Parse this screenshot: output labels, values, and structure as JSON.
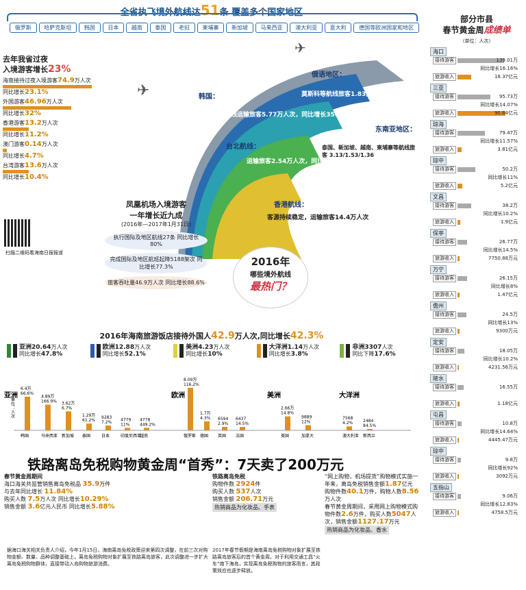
{
  "header": {
    "title_a": "全省执飞境外航线达",
    "count": "51",
    "title_b": "条  覆盖多个国家地区",
    "countries": [
      "俄罗斯",
      "哈萨克斯坦",
      "韩国",
      "日本",
      "越南",
      "泰国",
      "老挝",
      "柬埔寨",
      "新加坡",
      "马来西亚",
      "澳大利亚",
      "意大利",
      "德国等欧洲国家和地区"
    ]
  },
  "left": {
    "title": "去年我省过夜",
    "title2": "入境游客增长",
    "pct": "23%",
    "rows": [
      {
        "a": "海南接待过夜入境游客",
        "v": "74.9",
        "u": "万人次",
        "g": "同比增长",
        "gv": "23.1%",
        "w": 130
      },
      {
        "a": "外国游客",
        "v": "46.96",
        "u": "万人次",
        "g": "同比增长",
        "gv": "32%",
        "w": 100
      },
      {
        "a": "香港游客",
        "v": "13.2",
        "u": "万人次",
        "g": "同比增长",
        "gv": "11.2%",
        "w": 38
      },
      {
        "a": "澳门游客",
        "v": "0.14",
        "u": "万人次",
        "g": "同比增长",
        "gv": "4.7%",
        "w": 6
      },
      {
        "a": "台湾游客",
        "v": "13.6",
        "u": "万人次",
        "g": "同比增长",
        "gv": "10.4%",
        "w": 38
      }
    ]
  },
  "arcs": {
    "sea": {
      "t": "东南亚地区：",
      "d": "泰国、新加坡、越南、柬埔寨等航线旅客",
      "v1": "3.13",
      "v2": "1.53",
      "v3": "1.36"
    },
    "rus": {
      "t": "俄语地区：",
      "d": "莫斯科等航线旅客",
      "v": "1.83",
      "u": "万人次，同比增长",
      "g": "147.2%"
    },
    "kor": {
      "t": "韩国：",
      "d": "首尔航线运输旅客",
      "v": "5.77",
      "u": "万人次，同比增长",
      "g": "356.6%"
    },
    "tw": {
      "t": "台北航线：",
      "d": "运输旅客",
      "v": "2.54",
      "u": "万人次，同比增长",
      "g": "25.6%"
    },
    "hk": {
      "t": "香港航线：",
      "d": "客源持续稳定，运输旅客",
      "v": "14.4",
      "u": "万人次"
    }
  },
  "phoenix": {
    "title": "凤凰机场入境游客",
    "title2": "一年增长近九成",
    "period": "(2016年—2017年1月31日)",
    "a": "执行国际及地区航线",
    "a_v": "27",
    "a_u": "条",
    "a_g": "同比增长",
    "a_gv": "80%",
    "b": "完成国际及地区航班起降",
    "b_v": "5188",
    "b_u": "架次",
    "b_g": "同比增长",
    "b_gv": "77.3%",
    "c": "旅客吞吐量",
    "c_v": "46.9",
    "c_u": "万人次",
    "c_g": "同比增长",
    "c_gv": "88.6%"
  },
  "qr": {
    "caption": "扫描二维码看海南日报报道"
  },
  "hot": {
    "y": "2016年",
    "s": "哪些境外航线",
    "h": "最热门？"
  },
  "tour": {
    "title": "2016年海南旅游饭店接待外国人",
    "v": "42.9",
    "u": "万人次,同比增长",
    "g": "42.3%",
    "cont": [
      {
        "n": "亚洲",
        "v": "20.64",
        "u": "万人次",
        "g": "同比增长",
        "gv": "47.8%",
        "c": "#2a8a3a"
      },
      {
        "n": "欧洲",
        "v": "12.88",
        "u": "万人次",
        "g": "同比增长",
        "gv": "52.1%",
        "c": "#2a5cb0"
      },
      {
        "n": "美洲",
        "v": "4.23",
        "u": "万人次",
        "g": "同比增长",
        "gv": "10%",
        "c": "#e0d040"
      },
      {
        "n": "大洋洲",
        "v": "1.14",
        "u": "万人次",
        "g": "同比增长",
        "gv": "3.8%",
        "c": "#e09020"
      },
      {
        "n": "非洲",
        "v": "3307",
        "u": "人次",
        "g": "同比下降",
        "gv": "17.6%",
        "c": "#80b040"
      }
    ]
  },
  "chart_data": {
    "type": "bar",
    "ylabel": "单位：人次",
    "groups": [
      "亚洲",
      "欧洲",
      "美洲",
      "大洋洲"
    ],
    "categories": [
      "韩国",
      "马来西亚",
      "新加坡",
      "泰国",
      "日本",
      "印度尼西亚",
      "越南",
      "俄罗斯",
      "德国",
      "英国",
      "法国",
      "美国",
      "加拿大",
      "澳大利亚",
      "新西兰"
    ],
    "labels": [
      "6.4万",
      "4.89万",
      "3.62万",
      "1.29万",
      "9283",
      "4779",
      "4778",
      "8.09万",
      "1.7万",
      "6594",
      "6437",
      "2.66万",
      "9889",
      "7568",
      "2484"
    ],
    "growth": [
      "66.6%",
      "166.9%",
      "6.7%",
      "61.2%",
      "7.2%",
      "11%",
      "449.2%",
      "116.2%",
      "4.3%",
      "2.9%",
      "14.5%",
      "14.8%",
      "12%",
      "4.2%",
      "84.5%"
    ],
    "values": [
      64000,
      48900,
      36200,
      12900,
      9283,
      4779,
      4778,
      80900,
      17000,
      6594,
      6437,
      26600,
      9889,
      7568,
      2484
    ]
  },
  "rail": {
    "title_a": "铁路离岛免税购物黄金周“首秀”：",
    "title_b": "7天卖了200万元",
    "p1": {
      "h": "春节黄金周期间",
      "a": "海口海关共监管销售离岛免税品",
      "av": "35.9",
      "au": "万件",
      "b": "与去年同比增长",
      "bv": "11.84%",
      "c": "购买人数",
      "cv": "7.5",
      "cu": "万人次",
      "d": "同比增长",
      "dv": "10.29%",
      "e": "销售金额",
      "ev": "3.6",
      "eu": "亿元人民币",
      "f": "同比增长",
      "fv": "5.88%",
      "note": "据海口海关相关负责人介绍，今年1月15日，海南离岛免税政策迎来第四次调整，在前三次对购物金额、数量、品种调整基础上，离岛免税购物对象扩展至铁路离岛旅客，此次调整进一步扩大离岛免税购物群体，直接带动入岛购物旅游消费。"
    },
    "p2": {
      "h": "铁路离岛免税",
      "a": "购物件数",
      "av": "2924",
      "au": "件",
      "b": "购买人数",
      "bv": "537",
      "bu": "人次",
      "c": "销售金额",
      "cv": "206.71",
      "cu": "万元",
      "d": "热销商品为化妆品、手表",
      "note": "2017年春节假期是海南离岛免税购物对象扩展至铁路离岛旅客后的首个黄金周。对于利用交通工具“火车”南下海岛，实现离岛免税购物的旅客而言，其政策效应也逐步释放。"
    },
    "p3": {
      "a": "“网上购物，机场提货”购物模式实施一年来，离岛免税销售金额",
      "av": "1.87",
      "au": "亿元",
      "b": "购物件数",
      "bv": "40.1",
      "bu": "万件，购物人数",
      "cv": "8.56",
      "cu": "万人次",
      "d": "春节黄金周期间，采用网上购物模式购物件数",
      "dv": "2.6",
      "du": "万件，购买人数",
      "ev": "5047",
      "eu": "人次，销售金额",
      "fv": "1127.17",
      "fu": "万元",
      "g": "热销商品为化妆品、香水"
    }
  },
  "sidebar": {
    "t1": "部分市县",
    "t2": "春节黄金周",
    "t3": "成绩单",
    "unit": "（单位：人次）",
    "l1": "接待游客",
    "l2": "旅游收入",
    "cities": [
      {
        "n": "海口",
        "a": "139.01万",
        "g": "同比增长16.16%",
        "b": "18.37亿元",
        "aw": 68,
        "bw": 20
      },
      {
        "n": "三亚",
        "a": "95.73万",
        "g": "同比增长14.07%",
        "b": "90.64亿元",
        "aw": 48,
        "bw": 70
      },
      {
        "n": "琼海",
        "a": "79.47万",
        "g": "同比增长11.57%",
        "b": "3.81亿元",
        "aw": 40,
        "bw": 6
      },
      {
        "n": "琼中",
        "a": "50.2万",
        "g": "同比增长11%",
        "b": "5.2亿元",
        "aw": 26,
        "bw": 7
      },
      {
        "n": "文昌",
        "a": "38.2万",
        "g": "同比增长10.2%",
        "b": "1.9亿元",
        "aw": 20,
        "bw": 4
      },
      {
        "n": "保亭",
        "a": "26.77万",
        "g": "同比增长14.5%",
        "b": "7750.88万元",
        "aw": 14,
        "bw": 3
      },
      {
        "n": "万宁",
        "a": "26.15万",
        "g": "同比增长8%",
        "b": "1.47亿元",
        "aw": 14,
        "bw": 3
      },
      {
        "n": "儋州",
        "a": "24.5万",
        "g": "同比增长13%",
        "b": "9300万元",
        "aw": 13,
        "bw": 3
      },
      {
        "n": "定安",
        "a": "18.05万",
        "g": "同比增长10.2%",
        "b": "4231.56万元",
        "aw": 10,
        "bw": 2
      },
      {
        "n": "陵水",
        "a": "16.55万",
        "g": "",
        "b": "1.18亿元",
        "aw": 9,
        "bw": 3
      },
      {
        "n": "屯昌",
        "a": "10.8万",
        "g": "同比增长14.64%",
        "b": "4445.47万元",
        "aw": 6,
        "bw": 2
      },
      {
        "n": "琼中",
        "a": "9.8万",
        "g": "同比增长92%",
        "b": "3092万元",
        "aw": 5,
        "bw": 2
      },
      {
        "n": "五指山",
        "a": "9.06万",
        "g": "同比增长12.83%",
        "b": "4758.5万元",
        "aw": 5,
        "bw": 2
      }
    ]
  },
  "colors": {
    "blue": "#2a6cb0",
    "orange": "#e09020",
    "green": "#2a8a3a",
    "red": "#d03040"
  }
}
